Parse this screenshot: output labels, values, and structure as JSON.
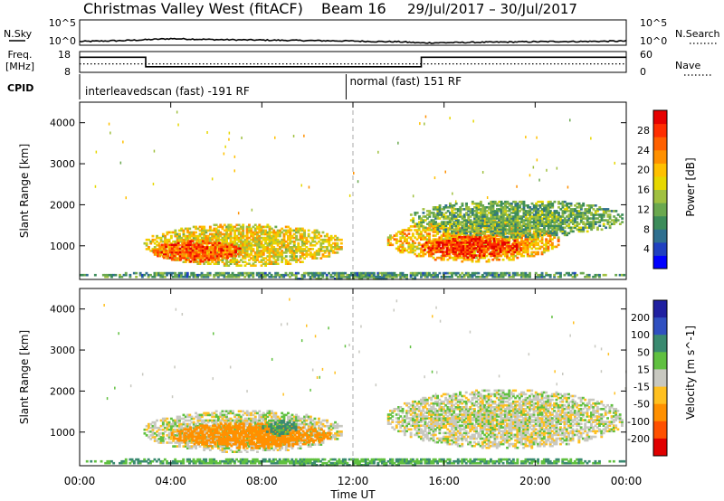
{
  "header": {
    "title": "Christmas Valley West (fitACF)",
    "beam": "Beam 16",
    "date_range": "29/Jul/2017 – 30/Jul/2017"
  },
  "nsky_panel": {
    "left_label": "N.Sky",
    "left_ticks": [
      "10^5",
      "10^0"
    ],
    "right_ticks": [
      "10^5",
      "10^0"
    ],
    "right_label": "N.Search"
  },
  "freq_panel": {
    "left_label_1": "Freq.",
    "left_label_2": "[MHz]",
    "left_ticks": [
      "18",
      "8"
    ],
    "right_ticks": [
      "60",
      "0"
    ],
    "right_label": "Nave"
  },
  "cpid_panel": {
    "label": "CPID",
    "mode_1": "interleavedscan (fast) -191 RF",
    "mode_2": "normal (fast) 151 RF"
  },
  "chart_data": [
    {
      "type": "heatmap",
      "quantity": "power",
      "ylabel": "Slant Range [km]",
      "xlabel": "Time UT",
      "x_ticks": [
        "00:00",
        "04:00",
        "08:00",
        "12:00",
        "16:00",
        "20:00",
        "00:00"
      ],
      "x_range_hours": [
        0,
        24
      ],
      "y_ticks": [
        1000,
        2000,
        3000,
        4000
      ],
      "ylim": [
        180,
        4500
      ],
      "colorbar": {
        "label": "Power [dB]",
        "ticks": [
          4,
          8,
          12,
          16,
          20,
          24,
          28
        ],
        "range": [
          0,
          32
        ],
        "colors": [
          "#0000ff",
          "#2040c0",
          "#2f6f8f",
          "#3c8c5a",
          "#6aa84f",
          "#a0c040",
          "#e6d700",
          "#ffc000",
          "#ff9000",
          "#ff6000",
          "#ff2d00",
          "#e60000"
        ]
      },
      "echo_regions": [
        {
          "t_start": 0.0,
          "t_end": 24.0,
          "r_min": 180,
          "r_max": 350,
          "power": 10
        },
        {
          "t_start": 2.8,
          "t_end": 11.5,
          "r_min": 500,
          "r_max": 1500,
          "power": 18
        },
        {
          "t_start": 3.2,
          "t_end": 7.0,
          "r_min": 600,
          "r_max": 1100,
          "power": 26
        },
        {
          "t_start": 13.5,
          "t_end": 21.0,
          "r_min": 600,
          "r_max": 1600,
          "power": 20
        },
        {
          "t_start": 15.0,
          "t_end": 19.5,
          "r_min": 700,
          "r_max": 1200,
          "power": 28
        },
        {
          "t_start": 14.5,
          "t_end": 23.8,
          "r_min": 1200,
          "r_max": 2100,
          "power": 12
        }
      ]
    },
    {
      "type": "heatmap",
      "quantity": "velocity",
      "ylabel": "Slant Range [km]",
      "xlabel": "Time UT",
      "x_ticks": [
        "00:00",
        "04:00",
        "08:00",
        "12:00",
        "16:00",
        "20:00",
        "00:00"
      ],
      "x_range_hours": [
        0,
        24
      ],
      "y_ticks": [
        1000,
        2000,
        3000,
        4000
      ],
      "ylim": [
        180,
        4500
      ],
      "colorbar": {
        "label": "Velocity [m s^-1]",
        "ticks": [
          200,
          100,
          50,
          15,
          -15,
          -50,
          -100,
          -200
        ],
        "colors": [
          "#2020a0",
          "#3050c0",
          "#3a8a70",
          "#60c040",
          "#c8c8c0",
          "#ffc020",
          "#ff9000",
          "#ff5000",
          "#e00000"
        ]
      },
      "echo_regions": [
        {
          "t_start": 0.0,
          "t_end": 24.0,
          "r_min": 180,
          "r_max": 350,
          "velocity": 30
        },
        {
          "t_start": 2.8,
          "t_end": 11.5,
          "r_min": 500,
          "r_max": 1500,
          "velocity": 0
        },
        {
          "t_start": 4.0,
          "t_end": 11.0,
          "r_min": 600,
          "r_max": 1200,
          "velocity": -50
        },
        {
          "t_start": 8.0,
          "t_end": 9.5,
          "r_min": 900,
          "r_max": 1300,
          "velocity": 40
        },
        {
          "t_start": 13.5,
          "t_end": 23.8,
          "r_min": 600,
          "r_max": 2000,
          "velocity": 0
        }
      ]
    }
  ],
  "noise_series": {
    "name": "N.Sky",
    "t_hours": [
      0,
      1,
      2,
      3,
      4,
      5,
      6,
      7,
      8,
      9,
      10,
      11,
      12,
      13,
      14,
      15,
      16,
      17,
      18,
      19,
      20,
      21,
      22,
      23,
      24
    ],
    "log_value": [
      0.6,
      0.7,
      0.8,
      1.0,
      1.2,
      1.1,
      1.0,
      0.95,
      0.9,
      0.85,
      0.8,
      0.75,
      0.7,
      0.6,
      0.55,
      0.3,
      0.35,
      0.4,
      0.45,
      0.5,
      0.55,
      0.6,
      0.6,
      0.65,
      0.7
    ],
    "log_max": 5
  },
  "freq_series": {
    "name": "Freq.",
    "t_hours": [
      0,
      2.9,
      2.9,
      15.0,
      15.0,
      24
    ],
    "mhz": [
      15.5,
      15.5,
      10.5,
      10.5,
      15.5,
      15.5
    ],
    "range_mhz": [
      8,
      18
    ]
  },
  "nave_series": {
    "name": "Nave",
    "t_hours": [
      0,
      24
    ],
    "value": [
      24,
      24
    ],
    "range": [
      0,
      60
    ]
  }
}
